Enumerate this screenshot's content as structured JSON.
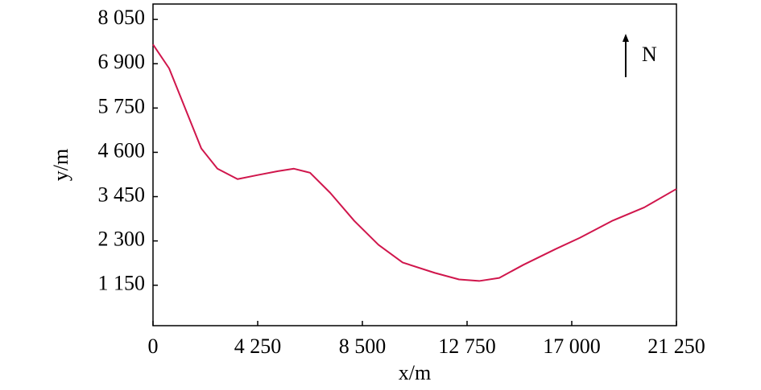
{
  "chart_data": {
    "type": "line",
    "x_label": "x/m",
    "y_label": "y/m",
    "north_label": "N",
    "color": "#d0164c",
    "x": [
      0,
      654,
      1308,
      1961,
      2615,
      3432,
      4250,
      5067,
      5721,
      6375,
      7192,
      8172,
      9153,
      10134,
      11442,
      12423,
      13240,
      14057,
      15038,
      16346,
      17327,
      18635,
      19943,
      21250
    ],
    "values": [
      7400,
      6780,
      5740,
      4700,
      4175,
      3905,
      4010,
      4110,
      4175,
      4070,
      3550,
      2820,
      2200,
      1740,
      1470,
      1300,
      1260,
      1340,
      1680,
      2090,
      2380,
      2820,
      3170,
      3650
    ],
    "xlim": [
      0,
      21250
    ],
    "xticks": [
      0,
      {
        "value": 4250,
        "label": "4 250"
      },
      {
        "value": 8500,
        "label": "8 500"
      },
      {
        "value": 12750,
        "label": "12 750"
      },
      {
        "value": 17000,
        "label": "17 000"
      },
      {
        "value": 21250,
        "label": "21 250"
      }
    ],
    "ylim": [
      100,
      8450
    ],
    "yticks": [
      {
        "value": 1150,
        "label": "1 150"
      },
      {
        "value": 2300,
        "label": "2 300"
      },
      {
        "value": 3450,
        "label": "3 450"
      },
      {
        "value": 4600,
        "label": "4 600"
      },
      {
        "value": 5750,
        "label": "5 750"
      },
      {
        "value": 6900,
        "label": "6 900"
      },
      {
        "value": 8050,
        "label": "8 050"
      }
    ]
  }
}
